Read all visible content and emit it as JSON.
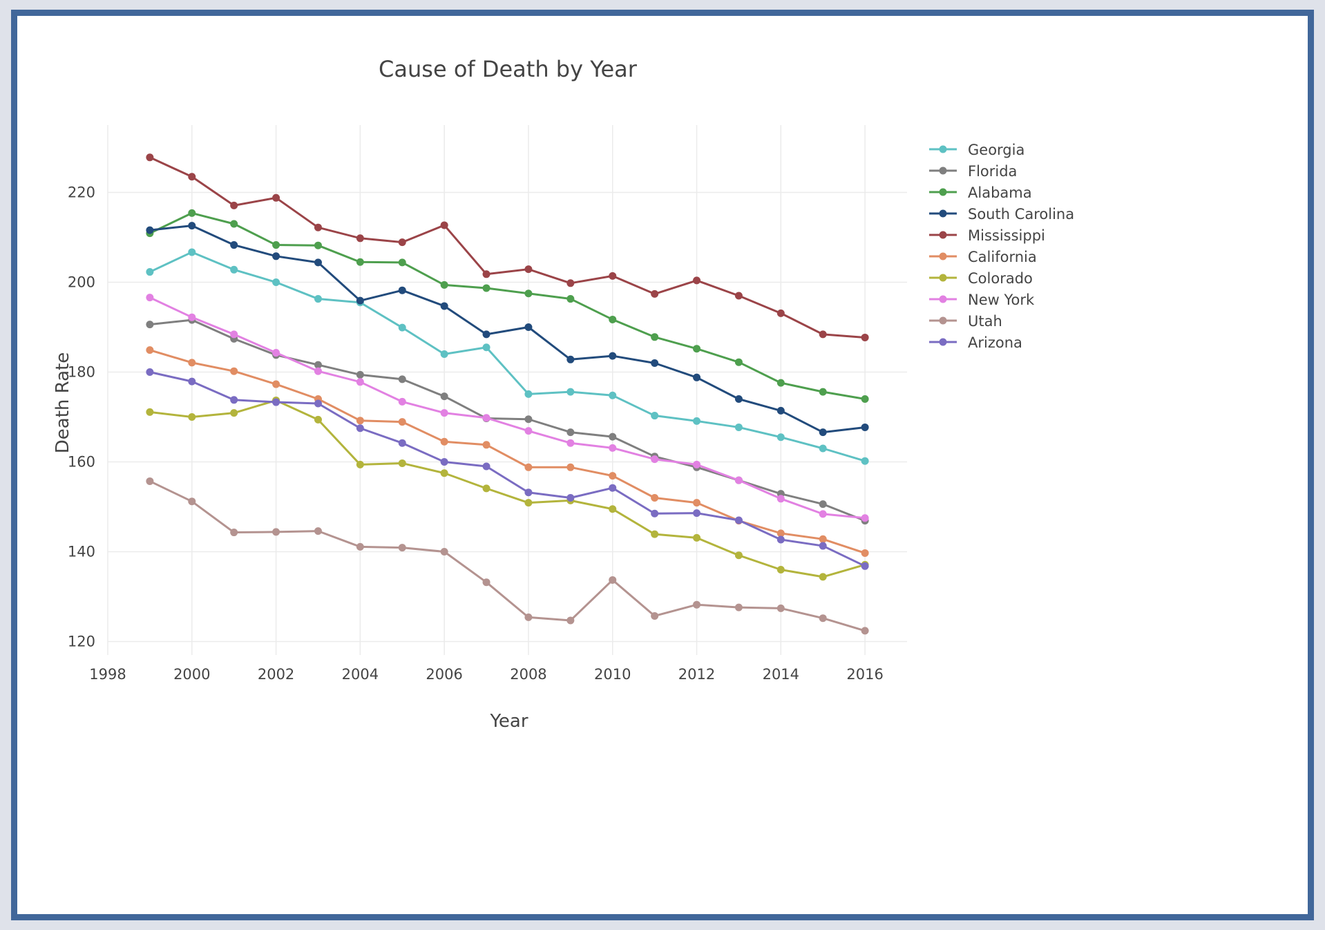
{
  "chart_data": {
    "type": "line",
    "title": "Cause of Death by Year",
    "xlabel": "Year",
    "ylabel": "Death Rate",
    "xlim": [
      1998,
      2017
    ],
    "ylim": [
      117,
      235
    ],
    "x_ticks": [
      1998,
      2000,
      2002,
      2004,
      2006,
      2008,
      2010,
      2012,
      2014,
      2016
    ],
    "y_ticks": [
      120,
      140,
      160,
      180,
      200,
      220
    ],
    "grid": true,
    "legend_position": "top-right",
    "x": [
      1999,
      2000,
      2001,
      2002,
      2003,
      2004,
      2005,
      2006,
      2007,
      2008,
      2009,
      2010,
      2011,
      2012,
      2013,
      2014,
      2015,
      2016
    ],
    "series": [
      {
        "name": "Georgia",
        "color": "#5ec1c3",
        "values": [
          202.3,
          206.7,
          202.8,
          200.0,
          196.3,
          195.5,
          189.9,
          184.0,
          185.5,
          175.1,
          175.6,
          174.8,
          170.3,
          169.1,
          167.7,
          165.5,
          163.0,
          160.2
        ]
      },
      {
        "name": "Florida",
        "color": "#7f7f7f",
        "values": [
          190.6,
          191.6,
          187.4,
          183.8,
          181.6,
          179.4,
          178.4,
          174.6,
          169.7,
          169.5,
          166.6,
          165.6,
          161.2,
          158.8,
          155.9,
          152.9,
          150.6,
          146.9
        ]
      },
      {
        "name": "Alabama",
        "color": "#4e9f4e",
        "values": [
          210.9,
          215.4,
          213.0,
          208.3,
          208.2,
          204.5,
          204.4,
          199.4,
          198.7,
          197.5,
          196.3,
          191.7,
          187.8,
          185.2,
          182.2,
          177.6,
          175.6,
          174.0
        ]
      },
      {
        "name": "South Carolina",
        "color": "#224b7c",
        "values": [
          211.6,
          212.6,
          208.3,
          205.8,
          204.4,
          195.9,
          198.2,
          194.7,
          188.4,
          190.0,
          182.8,
          183.6,
          182.0,
          178.8,
          174.0,
          171.4,
          166.6,
          167.7
        ]
      },
      {
        "name": "Mississippi",
        "color": "#9b4448",
        "values": [
          227.8,
          223.5,
          217.1,
          218.8,
          212.2,
          209.8,
          208.9,
          212.7,
          201.8,
          202.9,
          199.8,
          201.4,
          197.4,
          200.4,
          197.0,
          193.1,
          188.4,
          187.7
        ]
      },
      {
        "name": "California",
        "color": "#e18d63",
        "values": [
          184.9,
          182.1,
          180.2,
          177.3,
          174.0,
          169.2,
          168.9,
          164.5,
          163.8,
          158.8,
          158.8,
          156.9,
          152.0,
          150.9,
          146.9,
          144.1,
          142.8,
          139.7
        ]
      },
      {
        "name": "Colorado",
        "color": "#b3b43c",
        "values": [
          171.1,
          170.0,
          170.9,
          173.7,
          169.4,
          159.4,
          159.7,
          157.5,
          154.1,
          150.9,
          151.4,
          149.5,
          143.9,
          143.1,
          139.2,
          136.0,
          134.4,
          137.1
        ]
      },
      {
        "name": "New York",
        "color": "#e281e2",
        "values": [
          196.6,
          192.2,
          188.4,
          184.3,
          180.2,
          177.8,
          173.4,
          170.9,
          169.8,
          166.9,
          164.2,
          163.1,
          160.6,
          159.4,
          155.9,
          151.8,
          148.4,
          147.5
        ]
      },
      {
        "name": "Utah",
        "color": "#b49390",
        "values": [
          155.7,
          151.2,
          144.3,
          144.4,
          144.6,
          141.1,
          140.9,
          140.0,
          133.2,
          125.4,
          124.7,
          133.7,
          125.7,
          128.2,
          127.6,
          127.4,
          125.2,
          122.4
        ]
      },
      {
        "name": "Arizona",
        "color": "#7a6cc2",
        "values": [
          180.0,
          177.9,
          173.8,
          173.3,
          173.0,
          167.5,
          164.2,
          160.0,
          159.0,
          153.2,
          152.0,
          154.2,
          148.5,
          148.6,
          147.0,
          142.7,
          141.3,
          136.8
        ]
      }
    ]
  }
}
